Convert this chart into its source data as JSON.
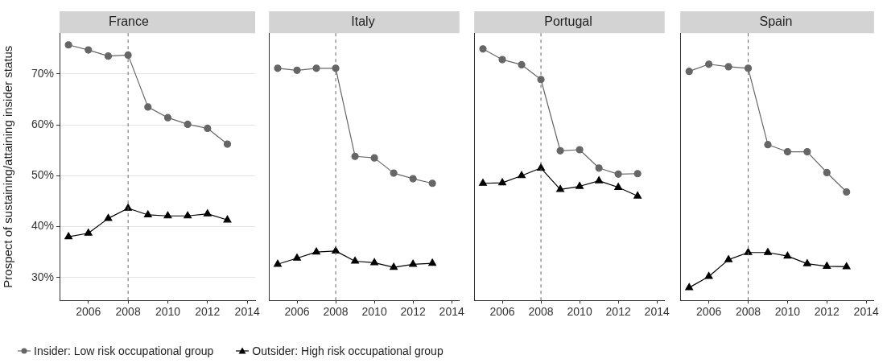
{
  "chart_data": [
    {
      "type": "line",
      "title": "France",
      "ylabel": "Prospect of sustaining/attaining insider status",
      "x": [
        2005,
        2006,
        2007,
        2008,
        2009,
        2010,
        2011,
        2012,
        2013
      ],
      "xlim": [
        2004.55,
        2014.4
      ],
      "xticks": [
        2006,
        2008,
        2010,
        2012,
        2014
      ],
      "ylim": [
        25.5,
        78
      ],
      "yticks": [
        {
          "value": 30,
          "label": "30%"
        },
        {
          "value": 40,
          "label": "40%"
        },
        {
          "value": 50,
          "label": "50%"
        },
        {
          "value": 60,
          "label": "60%"
        },
        {
          "value": 70,
          "label": "70%"
        }
      ],
      "grid": "y",
      "legend": "bottom",
      "ref_lines": [
        {
          "axis": "x",
          "value": 2008,
          "line_style": "dashed",
          "color": "#666666"
        }
      ],
      "series": [
        {
          "name": "Insider: Low risk occupational group",
          "color": "#666666",
          "marker": "circle",
          "values": [
            75.7,
            74.7,
            73.5,
            73.7,
            63.5,
            61.4,
            60.1,
            59.3,
            56.2
          ]
        },
        {
          "name": "Outsider: High risk occupational group",
          "color": "#000000",
          "marker": "triangle",
          "values": [
            38.0,
            38.7,
            41.6,
            43.6,
            42.3,
            42.1,
            42.1,
            42.5,
            41.3
          ]
        }
      ]
    },
    {
      "type": "line",
      "title": "Italy",
      "x": [
        2005,
        2006,
        2007,
        2008,
        2009,
        2010,
        2011,
        2012,
        2013
      ],
      "xlim": [
        2004.55,
        2014.4
      ],
      "xticks": [
        2006,
        2008,
        2010,
        2012,
        2014
      ],
      "ylim": [
        25.5,
        78
      ],
      "tick_labels": "x",
      "grid": "y",
      "ref_lines": [
        {
          "axis": "x",
          "value": 2008,
          "line_style": "dashed",
          "color": "#666666"
        }
      ],
      "series": [
        {
          "color": "#666666",
          "marker": "circle",
          "values": [
            71.1,
            70.7,
            71.1,
            71.1,
            53.8,
            53.5,
            50.5,
            49.4,
            48.5
          ]
        },
        {
          "color": "#000000",
          "marker": "triangle",
          "values": [
            32.6,
            33.8,
            35.0,
            35.2,
            33.2,
            32.9,
            32.0,
            32.6,
            32.8
          ]
        }
      ]
    },
    {
      "type": "line",
      "title": "Portugal",
      "x": [
        2005,
        2006,
        2007,
        2008,
        2009,
        2010,
        2011,
        2012,
        2013
      ],
      "xlim": [
        2004.55,
        2014.4
      ],
      "xticks": [
        2006,
        2008,
        2010,
        2012,
        2014
      ],
      "ylim": [
        25.5,
        78
      ],
      "tick_labels": "x",
      "grid": "y",
      "ref_lines": [
        {
          "axis": "x",
          "value": 2008,
          "line_style": "dashed",
          "color": "#666666"
        }
      ],
      "series": [
        {
          "color": "#666666",
          "marker": "circle",
          "values": [
            74.9,
            72.8,
            71.8,
            68.9,
            54.9,
            55.1,
            51.5,
            50.3,
            50.4
          ]
        },
        {
          "color": "#000000",
          "marker": "triangle",
          "values": [
            48.5,
            48.6,
            50.0,
            51.5,
            47.3,
            47.9,
            49.0,
            47.7,
            46.0
          ]
        }
      ]
    },
    {
      "type": "line",
      "title": "Spain",
      "x": [
        2005,
        2006,
        2007,
        2008,
        2009,
        2010,
        2011,
        2012,
        2013
      ],
      "xlim": [
        2004.55,
        2014.4
      ],
      "xticks": [
        2006,
        2008,
        2010,
        2012,
        2014
      ],
      "ylim": [
        25.5,
        78
      ],
      "tick_labels": "x",
      "grid": "y",
      "ref_lines": [
        {
          "axis": "x",
          "value": 2008,
          "line_style": "dashed",
          "color": "#666666"
        }
      ],
      "series": [
        {
          "color": "#666666",
          "marker": "circle",
          "values": [
            70.5,
            71.9,
            71.4,
            71.1,
            56.1,
            54.7,
            54.7,
            50.6,
            46.8
          ]
        },
        {
          "color": "#000000",
          "marker": "triangle",
          "values": [
            28.0,
            30.2,
            33.5,
            34.9,
            34.9,
            34.2,
            32.7,
            32.2,
            32.1
          ]
        }
      ]
    }
  ]
}
